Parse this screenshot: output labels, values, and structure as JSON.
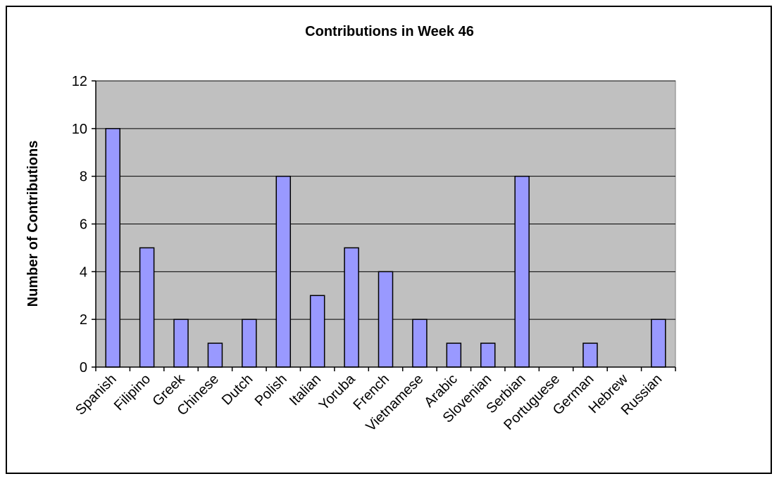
{
  "colors": {
    "plot_background": "#c0c0c0",
    "bar_fill": "#9999ff",
    "bar_stroke": "#000000",
    "gridline": "#000000",
    "frame": "#000000"
  },
  "chart_data": {
    "type": "bar",
    "title": "Contributions in Week 46",
    "xlabel": "",
    "ylabel": "Number of Contributions",
    "ylim": [
      0,
      12
    ],
    "yticks": [
      0,
      2,
      4,
      6,
      8,
      10,
      12
    ],
    "grid": true,
    "legend": "none",
    "categories": [
      "Spanish",
      "Filipino",
      "Greek",
      "Chinese",
      "Dutch",
      "Polish",
      "Italian",
      "Yoruba",
      "French",
      "Vietnamese",
      "Arabic",
      "Slovenian",
      "Serbian",
      "Portuguese",
      "German",
      "Hebrew",
      "Russian"
    ],
    "values": [
      10,
      5,
      2,
      1,
      2,
      8,
      3,
      5,
      4,
      2,
      1,
      1,
      8,
      0,
      1,
      0,
      2
    ]
  }
}
